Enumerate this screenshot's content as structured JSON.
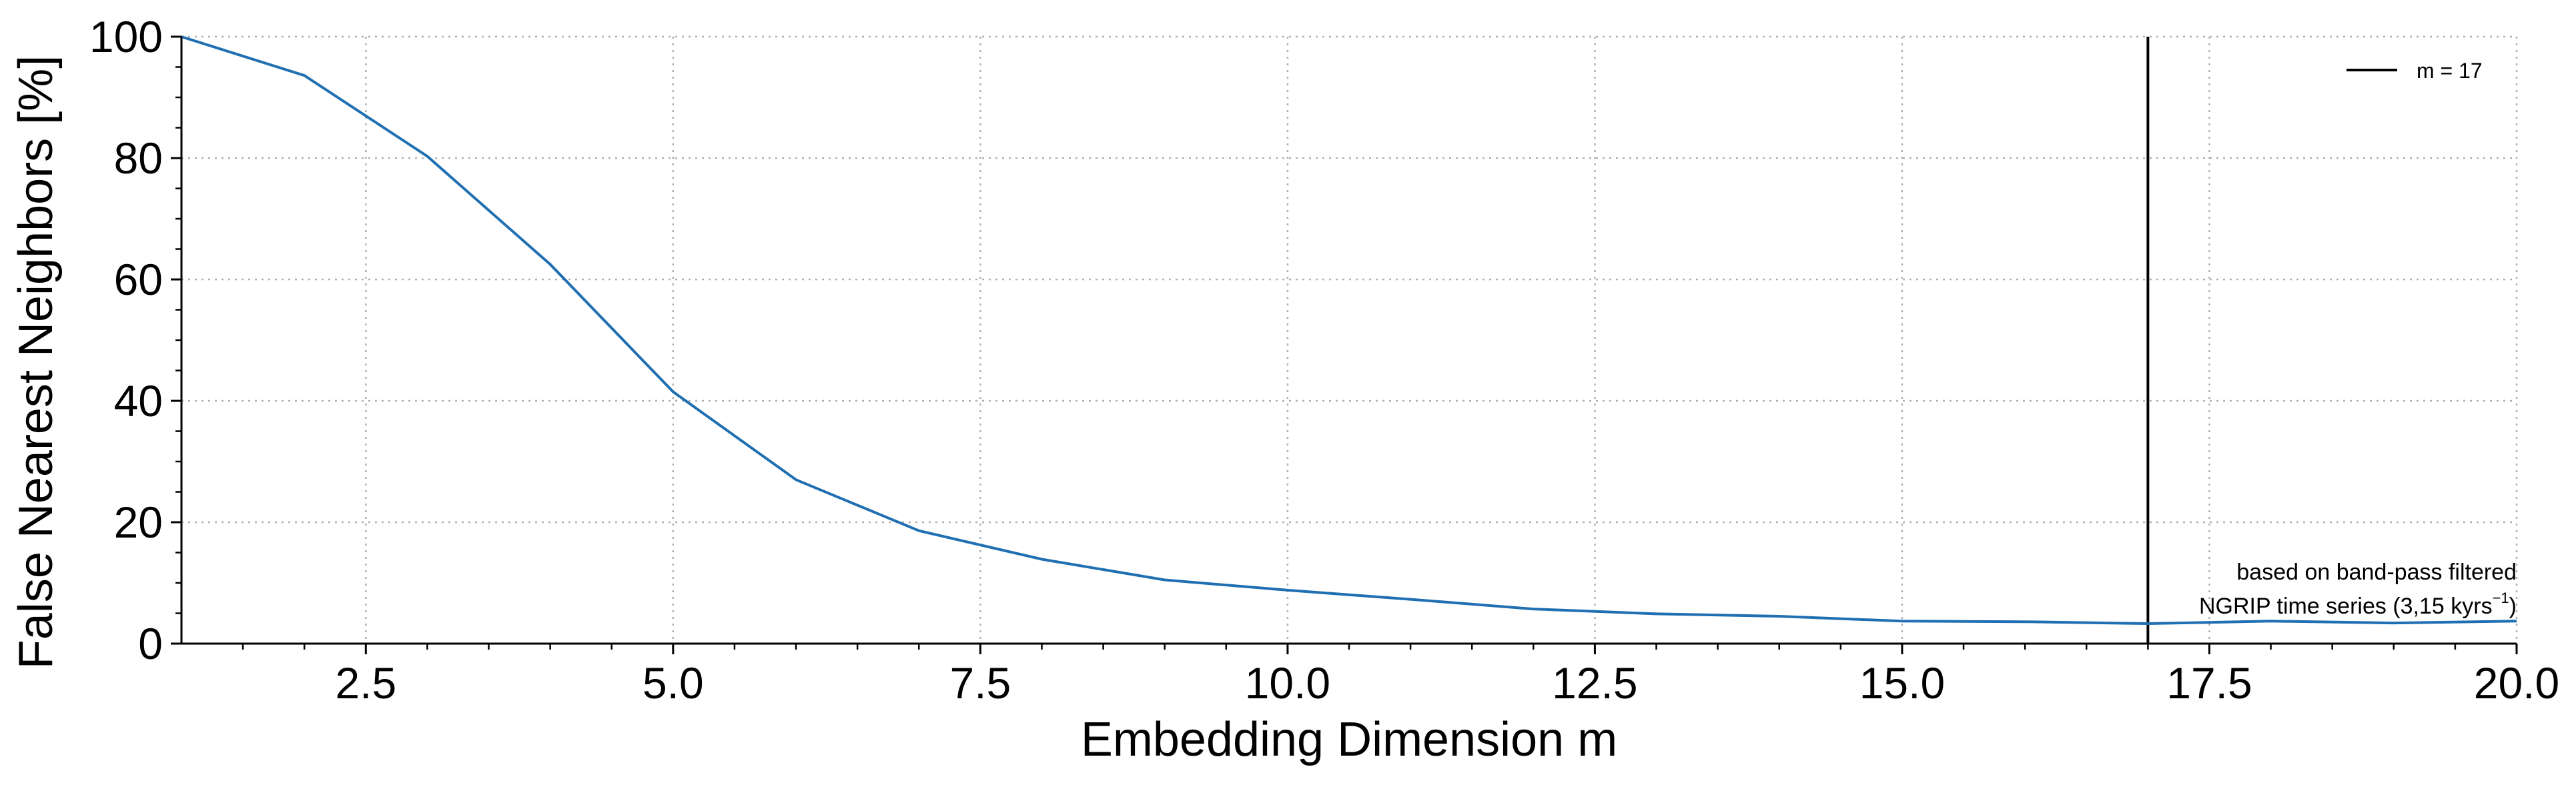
{
  "chart_data": {
    "type": "line",
    "xlabel": "Embedding Dimension m",
    "ylabel": "False Nearest Neighbors [%]",
    "xlim": [
      1,
      20
    ],
    "ylim": [
      0,
      100
    ],
    "x_ticks": [
      2.5,
      5.0,
      7.5,
      10.0,
      12.5,
      15.0,
      17.5,
      20.0
    ],
    "x_tick_labels": [
      "2.5",
      "5.0",
      "7.5",
      "10.0",
      "12.5",
      "15.0",
      "17.5",
      "20.0"
    ],
    "y_ticks": [
      0,
      20,
      40,
      60,
      80,
      100
    ],
    "y_tick_labels": [
      "0",
      "20",
      "40",
      "60",
      "80",
      "100"
    ],
    "grid": true,
    "series": [
      {
        "color": "#1f6fb2",
        "x": [
          1,
          2,
          3,
          4,
          5,
          6,
          7,
          8,
          9,
          10,
          11,
          12,
          13,
          14,
          15,
          16,
          17,
          18,
          19,
          20
        ],
        "y": [
          100,
          93.6,
          80.3,
          62.5,
          41.5,
          27.0,
          18.6,
          13.9,
          10.5,
          8.8,
          7.3,
          5.7,
          4.9,
          4.5,
          3.7,
          3.6,
          3.3,
          3.7,
          3.4,
          3.7
        ]
      }
    ],
    "vline": {
      "x": 17,
      "color": "#000000"
    },
    "legend": {
      "location": "top-right",
      "entries": [
        {
          "label": "m = 17",
          "color": "#000000"
        }
      ]
    },
    "annotation": {
      "location": "bottom-right",
      "line1": "based on band-pass filtered",
      "line2_main": "NGRIP time series (3,15 kyrs",
      "line2_sup": "−1",
      "line2_end": ")"
    }
  }
}
